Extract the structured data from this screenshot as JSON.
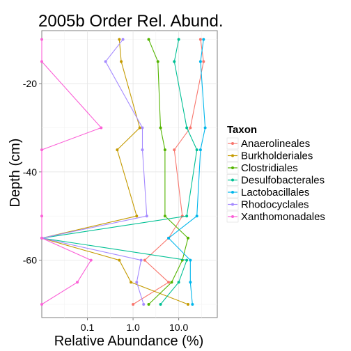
{
  "chart_data": {
    "type": "line",
    "title": "2005b Order Rel. Abund.",
    "xlabel": "Relative Abundance (%)",
    "ylabel": "Depth (cm)",
    "x_scale": "log10",
    "xlim": [
      0.01,
      70
    ],
    "ylim": [
      -73,
      -8
    ],
    "x_ticks": [
      0.1,
      1.0,
      10.0
    ],
    "x_tick_labels": [
      "0.1",
      "1.0",
      "10.0"
    ],
    "y_ticks": [
      -20,
      -40,
      -60
    ],
    "y_tick_labels": [
      "-20",
      "-40",
      "-60"
    ],
    "grid": true,
    "legend": {
      "title": "Taxon",
      "position": "right"
    },
    "series": [
      {
        "name": "Anaerolineales",
        "color": "#F8766D",
        "points": [
          [
            30,
            -10
          ],
          [
            35,
            -15
          ],
          [
            18,
            -30
          ],
          [
            8,
            -35
          ],
          [
            12,
            -50
          ],
          [
            6,
            -55
          ],
          [
            1.8,
            -60
          ],
          [
            6,
            -65
          ],
          [
            1,
            -70
          ]
        ]
      },
      {
        "name": "Burkholderiales",
        "color": "#C49A00",
        "points": [
          [
            0.5,
            -10
          ],
          [
            0.55,
            -15
          ],
          [
            1.4,
            -30
          ],
          [
            0.45,
            -35
          ],
          [
            1.2,
            -50
          ],
          [
            0.01,
            -55
          ],
          [
            0.5,
            -60
          ],
          [
            0.9,
            -65
          ],
          [
            16,
            -70
          ]
        ]
      },
      {
        "name": "Clostridiales",
        "color": "#53B400",
        "points": [
          [
            2.2,
            -10
          ],
          [
            3.5,
            -15
          ],
          [
            4,
            -30
          ],
          [
            5,
            -35
          ],
          [
            5,
            -50
          ],
          [
            16,
            -55
          ],
          [
            12,
            -60
          ],
          [
            7,
            -65
          ],
          [
            2.2,
            -70
          ]
        ]
      },
      {
        "name": "Desulfobacterales",
        "color": "#00C094",
        "points": [
          [
            10,
            -10
          ],
          [
            8,
            -15
          ],
          [
            15,
            -30
          ],
          [
            25,
            -35
          ],
          [
            15,
            -50
          ],
          [
            0.01,
            -55
          ],
          [
            15,
            -60
          ],
          [
            10,
            -65
          ],
          [
            4,
            -70
          ]
        ]
      },
      {
        "name": "Lactobacillales",
        "color": "#00B6EB",
        "points": [
          [
            35,
            -10
          ],
          [
            30,
            -15
          ],
          [
            38,
            -30
          ],
          [
            30,
            -35
          ],
          [
            25,
            -50
          ],
          [
            6,
            -55
          ],
          [
            18,
            -60
          ],
          [
            18,
            -65
          ],
          [
            20,
            -70
          ]
        ]
      },
      {
        "name": "Rhodocyclales",
        "color": "#A58AFF",
        "points": [
          [
            0.6,
            -10
          ],
          [
            0.25,
            -15
          ],
          [
            1.6,
            -30
          ],
          [
            1.6,
            -35
          ],
          [
            2,
            -50
          ],
          [
            0.01,
            -55
          ],
          [
            1.5,
            -60
          ],
          [
            1.2,
            -65
          ],
          [
            1.7,
            -70
          ]
        ]
      },
      {
        "name": "Xanthomonadales",
        "color": "#FB61D7",
        "points": [
          [
            0.01,
            -10
          ],
          [
            0.01,
            -15
          ],
          [
            0.2,
            -30
          ],
          [
            0.01,
            -35
          ],
          [
            0.01,
            -50
          ],
          [
            0.01,
            -55
          ],
          [
            0.12,
            -60
          ],
          [
            0.06,
            -65
          ],
          [
            0.01,
            -70
          ]
        ]
      }
    ]
  }
}
